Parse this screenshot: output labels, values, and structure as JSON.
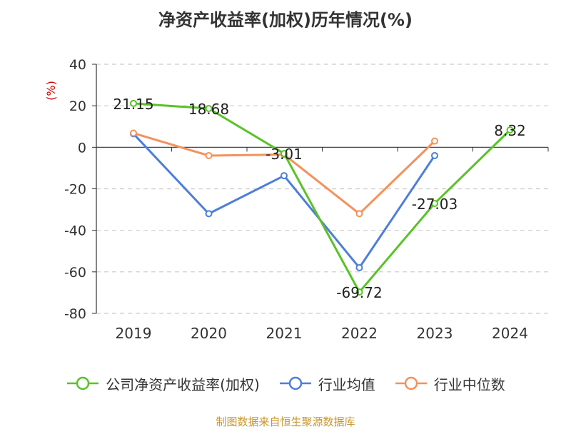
{
  "chart_data": {
    "type": "line",
    "title": "净资产收益率(加权)历年情况(%)",
    "ylabel": "(%)",
    "xlabel": "",
    "categories": [
      "2019",
      "2020",
      "2021",
      "2022",
      "2023",
      "2024"
    ],
    "ylim": [
      -80,
      40
    ],
    "yticks": [
      40,
      20,
      0,
      -20,
      -40,
      -60,
      -80
    ],
    "grid": true,
    "legend_position": "bottom",
    "series": [
      {
        "name": "公司净资产收益率(加权)",
        "color": "#5ac228",
        "values": [
          21.15,
          18.68,
          -3.01,
          -69.72,
          -27.03,
          8.32
        ],
        "labels": [
          "21.15",
          "18.68",
          "-3.01",
          "-69.72",
          "-27.03",
          "8.32"
        ]
      },
      {
        "name": "行业均值",
        "color": "#4e7ed9",
        "values": [
          6.5,
          -32.0,
          -13.7,
          -58.0,
          -4.0,
          null
        ]
      },
      {
        "name": "行业中位数",
        "color": "#f5915a",
        "values": [
          6.8,
          -4.0,
          -3.5,
          -32.0,
          3.0,
          null
        ]
      }
    ]
  },
  "source_text": "制图数据来自恒生聚源数据库",
  "colors": {
    "axis": "#333333",
    "grid": "#cccccc",
    "ylabel": "#cc0000",
    "source": "#c8962e"
  }
}
